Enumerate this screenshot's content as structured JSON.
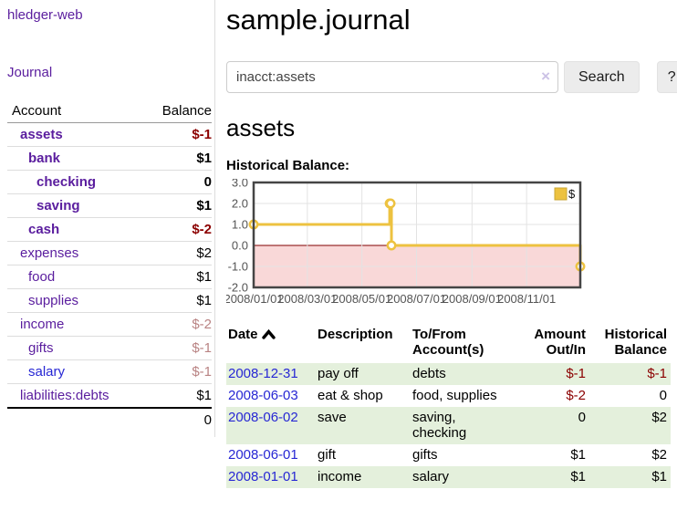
{
  "colors": {
    "link_purple": "#5a1d9e",
    "link_blue": "#2727d4",
    "negative": "#8b0000",
    "negative_muted": "#b98383",
    "row_stripe_green": "#e4f0dc",
    "button_bg": "#ececec"
  },
  "sidebar": {
    "brand": "hledger-web",
    "journal_label": "Journal",
    "accounts_table": {
      "headers": {
        "account": "Account",
        "balance": "Balance"
      },
      "rows": [
        {
          "name": "assets",
          "level": 1,
          "bold": true,
          "balance": "$-1",
          "balance_class": "neg-strong",
          "link_class": "purple"
        },
        {
          "name": "bank",
          "level": 2,
          "bold": true,
          "balance": "$1",
          "balance_class": "pos",
          "link_class": "purple"
        },
        {
          "name": "checking",
          "level": 3,
          "bold": true,
          "balance": "0",
          "balance_class": "pos",
          "link_class": "purple"
        },
        {
          "name": "saving",
          "level": 3,
          "bold": true,
          "balance": "$1",
          "balance_class": "pos",
          "link_class": "purple"
        },
        {
          "name": "cash",
          "level": 2,
          "bold": true,
          "balance": "$-2",
          "balance_class": "neg-strong",
          "link_class": "purple"
        },
        {
          "name": "expenses",
          "level": 1,
          "bold": false,
          "balance": "$2",
          "balance_class": "pos",
          "link_class": "purple"
        },
        {
          "name": "food",
          "level": 2,
          "bold": false,
          "balance": "$1",
          "balance_class": "pos",
          "link_class": "purple"
        },
        {
          "name": "supplies",
          "level": 2,
          "bold": false,
          "balance": "$1",
          "balance_class": "pos",
          "link_class": "purple"
        },
        {
          "name": "income",
          "level": 1,
          "bold": false,
          "balance": "$-2",
          "balance_class": "neg-muted",
          "link_class": "purple"
        },
        {
          "name": "gifts",
          "level": 2,
          "bold": false,
          "balance": "$-1",
          "balance_class": "neg-muted",
          "link_class": "purple"
        },
        {
          "name": "salary",
          "level": 2,
          "bold": false,
          "balance": "$-1",
          "balance_class": "neg-muted",
          "link_class": "blue"
        },
        {
          "name": "liabilities:debts",
          "level": 1,
          "bold": false,
          "balance": "$1",
          "balance_class": "pos",
          "link_class": "purple"
        }
      ],
      "total": "0"
    }
  },
  "header": {
    "title": "sample.journal"
  },
  "search": {
    "value": "inacct:assets",
    "clear_icon": "×",
    "button": "Search",
    "help_button": "?"
  },
  "account_page": {
    "heading": "assets",
    "chart_label": "Historical Balance:"
  },
  "chart_data": {
    "type": "line",
    "step": true,
    "series": [
      {
        "name": "$",
        "color": "#EDC240",
        "points": [
          [
            "2008/01/01",
            1
          ],
          [
            "2008/06/01",
            2
          ],
          [
            "2008/06/02",
            2
          ],
          [
            "2008/06/03",
            0
          ],
          [
            "2008/12/31",
            -1
          ]
        ]
      }
    ],
    "x_ticks": [
      "2008/01/01",
      "2008/03/01",
      "2008/05/01",
      "2008/07/01",
      "2008/09/01",
      "2008/11/01"
    ],
    "y_ticks": [
      3.0,
      2.0,
      1.0,
      0.0,
      -1.0,
      -2.0
    ],
    "xlim": [
      "2008/01/01",
      "2008/12/31"
    ],
    "ylim": [
      -2,
      3
    ],
    "grid": true,
    "legend_position": "top-right",
    "zero_line_color": "#800000",
    "negative_region_color": "#f9d8d8",
    "axis_text_color": "#545454",
    "grid_color": "#e3e3e3",
    "border_color": "#454545"
  },
  "register": {
    "headers": {
      "date": "Date",
      "description": "Description",
      "accounts": "To/From Account(s)",
      "amount": "Amount Out/In",
      "balance": "Historical Balance"
    },
    "sort_icon": "chevron-up",
    "rows": [
      {
        "date": "2008-12-31",
        "description": "pay off",
        "accounts": [
          "debts"
        ],
        "amount": "$-1",
        "amount_neg": true,
        "balance": "$-1",
        "balance_neg": true,
        "striped": true
      },
      {
        "date": "2008-06-03",
        "description": "eat & shop",
        "accounts": [
          "food",
          "supplies"
        ],
        "amount": "$-2",
        "amount_neg": true,
        "balance": "0",
        "balance_neg": false,
        "striped": false
      },
      {
        "date": "2008-06-02",
        "description": "save",
        "accounts": [
          "saving",
          "checking"
        ],
        "amount": "0",
        "amount_neg": false,
        "balance": "$2",
        "balance_neg": false,
        "striped": true
      },
      {
        "date": "2008-06-01",
        "description": "gift",
        "accounts": [
          "gifts"
        ],
        "amount": "$1",
        "amount_neg": false,
        "balance": "$2",
        "balance_neg": false,
        "striped": false
      },
      {
        "date": "2008-01-01",
        "description": "income",
        "accounts": [
          "salary"
        ],
        "amount": "$1",
        "amount_neg": false,
        "balance": "$1",
        "balance_neg": false,
        "striped": true
      }
    ]
  }
}
